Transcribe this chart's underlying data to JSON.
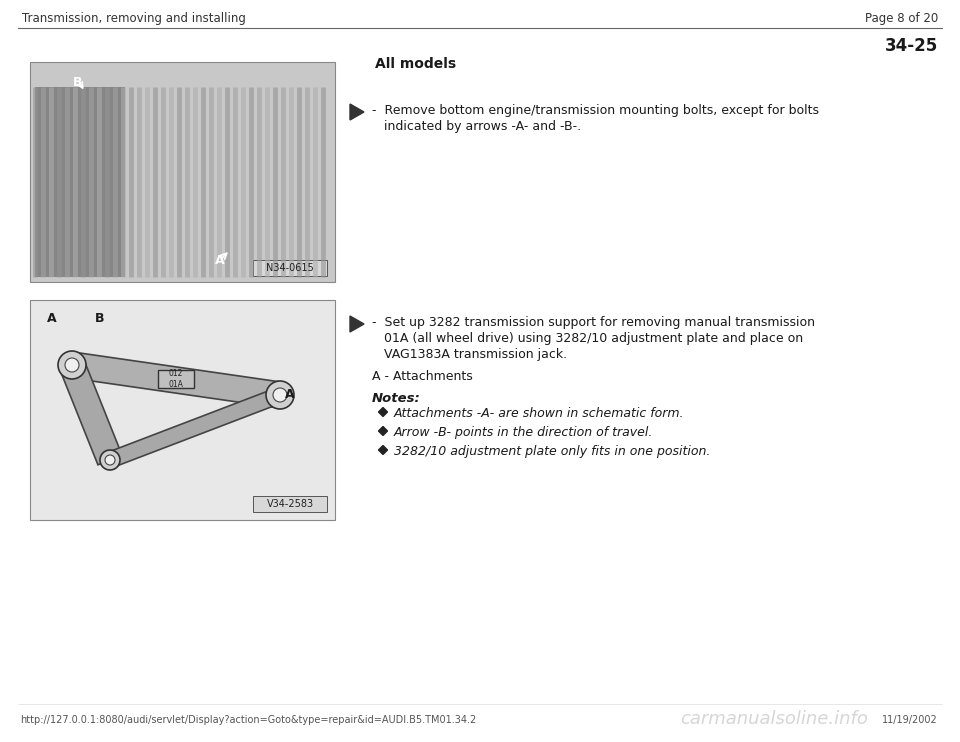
{
  "bg_color": "#ffffff",
  "header_left": "Transmission, removing and installing",
  "header_right": "Page 8 of 20",
  "section_number": "34-25",
  "section_title": "All models",
  "bullet1_line1": "-  Remove bottom engine/transmission mounting bolts, except for bolts",
  "bullet1_line2": "   indicated by arrows -A- and -B-.",
  "bullet2_line1": "-  Set up 3282 transmission support for removing manual transmission",
  "bullet2_line2": "   01A (all wheel drive) using 3282/10 adjustment plate and place on",
  "bullet2_line3": "   VAG1383A transmission jack.",
  "label_a": "A - Attachments",
  "notes_title": "Notes:",
  "note1": "Attachments -A- are shown in schematic form.",
  "note2": "Arrow -B- points in the direction of travel.",
  "note3": "3282/10 adjustment plate only fits in one position.",
  "footer_url": "http://127.0.0.1:8080/audi/servlet/Display?action=Goto&type=repair&id=AUDI.B5.TM01.34.2",
  "footer_date": "11/19/2002",
  "footer_watermark": "carmanualsoline.info",
  "img1_label": "N34-0615",
  "img2_label": "V34-2583",
  "text_color": "#1a1a1a",
  "header_color": "#333333",
  "line_color": "#666666",
  "img_border_color": "#888888",
  "img_bg1": "#c8c8c8",
  "img_bg2": "#e8e8e8"
}
